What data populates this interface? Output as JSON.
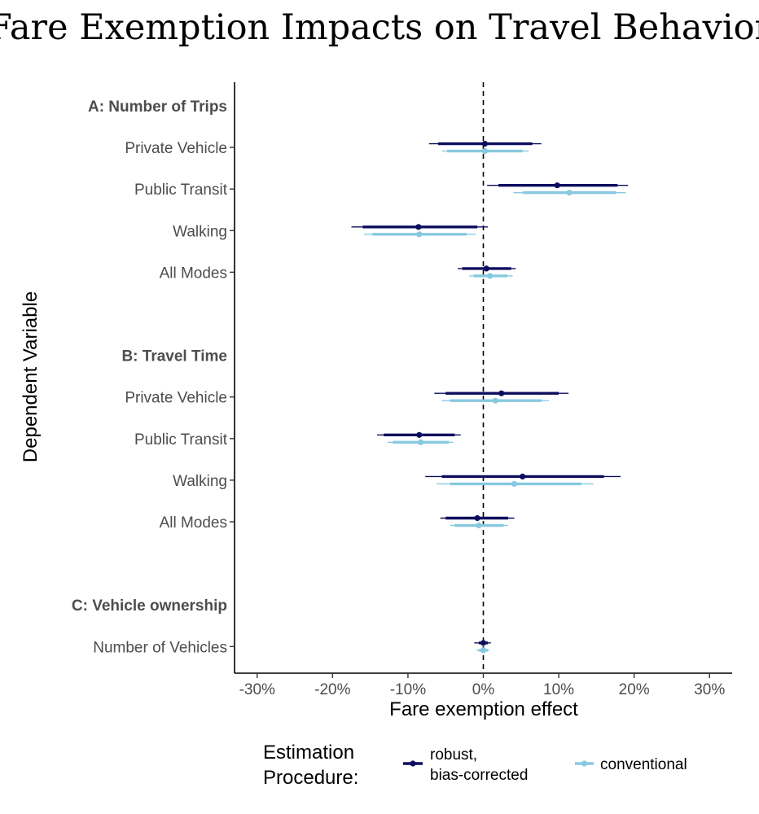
{
  "chart_data": {
    "type": "forest",
    "title": "Fare Exemption Impacts on Travel Behavior",
    "xlabel": "Fare exemption effect",
    "ylabel": "Dependent Variable",
    "xlim": [
      -0.33,
      0.33
    ],
    "xticks": [
      {
        "value": -0.3,
        "label": "-30%"
      },
      {
        "value": -0.2,
        "label": "-20%"
      },
      {
        "value": -0.1,
        "label": "-10%"
      },
      {
        "value": 0.0,
        "label": "0%"
      },
      {
        "value": 0.1,
        "label": "10%"
      },
      {
        "value": 0.2,
        "label": "20%"
      },
      {
        "value": 0.3,
        "label": "30%"
      }
    ],
    "reference_line": 0,
    "legend": {
      "title_lines": [
        "Estimation",
        "Procedure:"
      ],
      "position": "bottom",
      "entries": [
        {
          "key": "robust",
          "label_lines": [
            "robust,",
            "bias-corrected"
          ],
          "color": "#0d0d5e"
        },
        {
          "key": "conventional",
          "label_lines": [
            "conventional"
          ],
          "color": "#87c9e0"
        }
      ]
    },
    "rows": [
      {
        "type": "header",
        "label": "A: Number of Trips"
      },
      {
        "type": "item",
        "label": "Private Vehicle",
        "robust": {
          "estimate": 0.002,
          "ci_thick": [
            -0.06,
            0.065
          ],
          "ci_thin": [
            -0.072,
            0.077
          ]
        },
        "conventional": {
          "estimate": 0.002,
          "ci_thick": [
            -0.048,
            0.052
          ],
          "ci_thin": [
            -0.055,
            0.06
          ]
        }
      },
      {
        "type": "item",
        "label": "Public Transit",
        "robust": {
          "estimate": 0.098,
          "ci_thick": [
            0.02,
            0.178
          ],
          "ci_thin": [
            0.005,
            0.192
          ]
        },
        "conventional": {
          "estimate": 0.114,
          "ci_thick": [
            0.052,
            0.176
          ],
          "ci_thin": [
            0.04,
            0.189
          ]
        }
      },
      {
        "type": "item",
        "label": "Walking",
        "robust": {
          "estimate": -0.086,
          "ci_thick": [
            -0.16,
            -0.008
          ],
          "ci_thin": [
            -0.175,
            0.006
          ]
        },
        "conventional": {
          "estimate": -0.085,
          "ci_thick": [
            -0.147,
            -0.022
          ],
          "ci_thin": [
            -0.158,
            -0.01
          ]
        }
      },
      {
        "type": "item",
        "label": "All Modes",
        "robust": {
          "estimate": 0.004,
          "ci_thick": [
            -0.028,
            0.037
          ],
          "ci_thin": [
            -0.034,
            0.043
          ]
        },
        "conventional": {
          "estimate": 0.009,
          "ci_thick": [
            -0.013,
            0.032
          ],
          "ci_thin": [
            -0.019,
            0.039
          ]
        }
      },
      {
        "type": "spacer"
      },
      {
        "type": "header",
        "label": "B: Travel Time"
      },
      {
        "type": "item",
        "label": "Private Vehicle",
        "robust": {
          "estimate": 0.024,
          "ci_thick": [
            -0.05,
            0.1
          ],
          "ci_thin": [
            -0.065,
            0.113
          ]
        },
        "conventional": {
          "estimate": 0.016,
          "ci_thick": [
            -0.044,
            0.077
          ],
          "ci_thin": [
            -0.055,
            0.087
          ]
        }
      },
      {
        "type": "item",
        "label": "Public Transit",
        "robust": {
          "estimate": -0.085,
          "ci_thick": [
            -0.132,
            -0.038
          ],
          "ci_thin": [
            -0.141,
            -0.03
          ]
        },
        "conventional": {
          "estimate": -0.083,
          "ci_thick": [
            -0.12,
            -0.046
          ],
          "ci_thin": [
            -0.127,
            -0.04
          ]
        }
      },
      {
        "type": "item",
        "label": "Walking",
        "robust": {
          "estimate": 0.052,
          "ci_thick": [
            -0.055,
            0.16
          ],
          "ci_thin": [
            -0.077,
            0.182
          ]
        },
        "conventional": {
          "estimate": 0.041,
          "ci_thick": [
            -0.044,
            0.13
          ],
          "ci_thin": [
            -0.062,
            0.146
          ]
        }
      },
      {
        "type": "item",
        "label": "All Modes",
        "robust": {
          "estimate": -0.008,
          "ci_thick": [
            -0.05,
            0.033
          ],
          "ci_thin": [
            -0.057,
            0.041
          ]
        },
        "conventional": {
          "estimate": -0.006,
          "ci_thick": [
            -0.038,
            0.027
          ],
          "ci_thin": [
            -0.044,
            0.033
          ]
        }
      },
      {
        "type": "spacer"
      },
      {
        "type": "header",
        "label": "C: Vehicle ownership"
      },
      {
        "type": "item",
        "label": "Number of Vehicles",
        "robust": {
          "estimate": 0.0,
          "ci_thick": [
            -0.006,
            0.006
          ],
          "ci_thin": [
            -0.012,
            0.01
          ]
        },
        "conventional": {
          "estimate": 0.0,
          "ci_thick": [
            -0.006,
            0.006
          ],
          "ci_thin": [
            -0.009,
            0.008
          ]
        }
      }
    ]
  }
}
